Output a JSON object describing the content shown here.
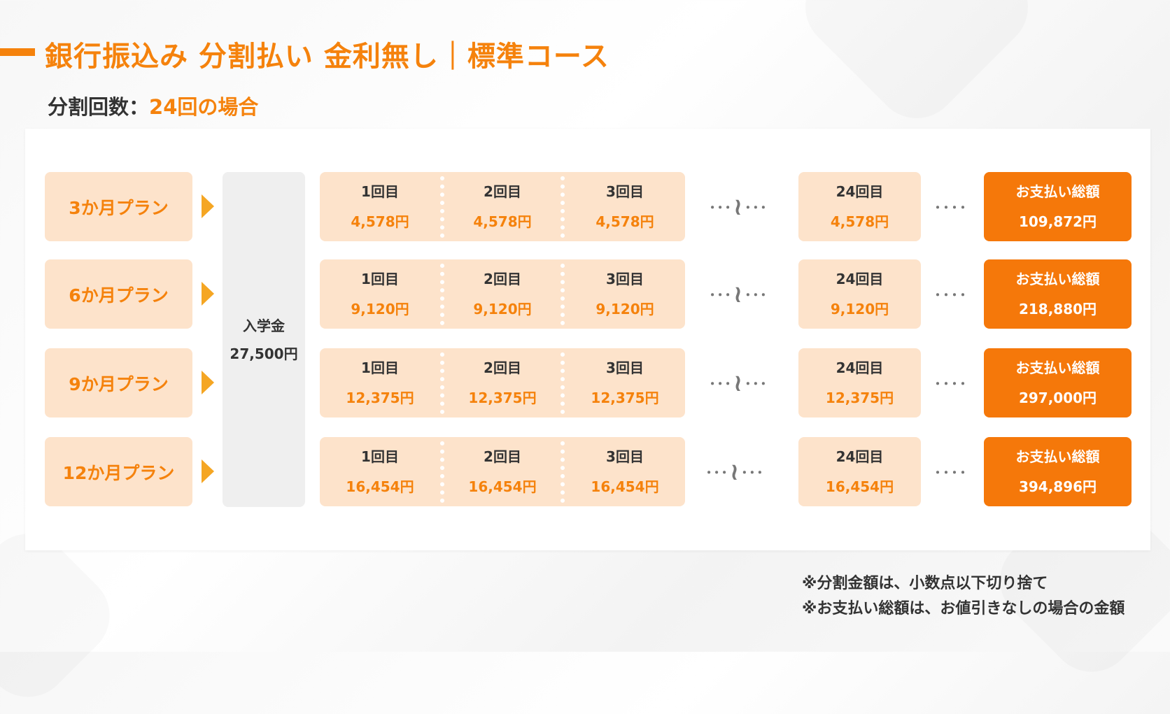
{
  "title": "銀行振込み 分割払い 金利無し｜標準コース",
  "subtitle": {
    "label": "分割回数：",
    "value": "24回の場合"
  },
  "admission_fee": {
    "label": "入学金",
    "amount": "27,500円"
  },
  "gap_left": "･･･",
  "gap_wave": "≀",
  "gap_right": "･･･",
  "dots": "････",
  "plans": [
    {
      "name": "3か月プラン",
      "installments": [
        {
          "n": "1回目",
          "a": "4,578円"
        },
        {
          "n": "2回目",
          "a": "4,578円"
        },
        {
          "n": "3回目",
          "a": "4,578円"
        }
      ],
      "last": {
        "n": "24回目",
        "a": "4,578円"
      },
      "total_label": "お支払い総額",
      "total": "109,872円"
    },
    {
      "name": "6か月プラン",
      "installments": [
        {
          "n": "1回目",
          "a": "9,120円"
        },
        {
          "n": "2回目",
          "a": "9,120円"
        },
        {
          "n": "3回目",
          "a": "9,120円"
        }
      ],
      "last": {
        "n": "24回目",
        "a": "9,120円"
      },
      "total_label": "お支払い総額",
      "total": "218,880円"
    },
    {
      "name": "9か月プラン",
      "installments": [
        {
          "n": "1回目",
          "a": "12,375円"
        },
        {
          "n": "2回目",
          "a": "12,375円"
        },
        {
          "n": "3回目",
          "a": "12,375円"
        }
      ],
      "last": {
        "n": "24回目",
        "a": "12,375円"
      },
      "total_label": "お支払い総額",
      "total": "297,000円"
    },
    {
      "name": "12か月プラン",
      "installments": [
        {
          "n": "1回目",
          "a": "16,454円"
        },
        {
          "n": "2回目",
          "a": "16,454円"
        },
        {
          "n": "3回目",
          "a": "16,454円"
        }
      ],
      "last": {
        "n": "24回目",
        "a": "16,454円"
      },
      "total_label": "お支払い総額",
      "total": "394,896円"
    }
  ],
  "notes": [
    "※分割金額は、小数点以下切り捨て",
    "※お支払い総額は、お値引きなしの場合の金額"
  ],
  "colors": {
    "accent": "#f5820c",
    "total_bg": "#f5780a",
    "light_bg": "#fde3cb"
  }
}
